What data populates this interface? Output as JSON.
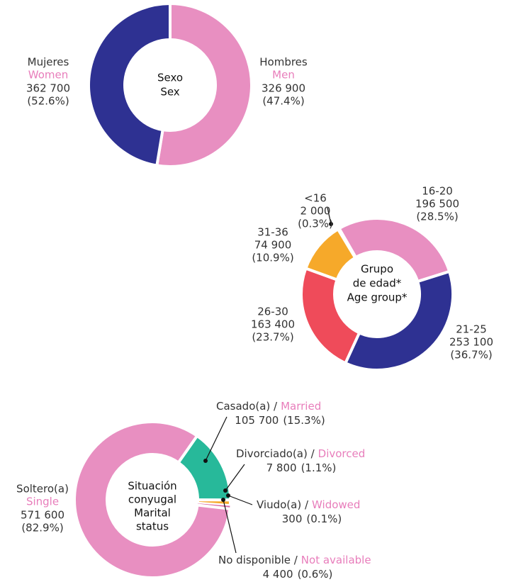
{
  "chart_data": [
    {
      "type": "pie",
      "center_es": [
        "Sexo"
      ],
      "center_en": [
        "Sex"
      ],
      "categories": [
        "Mujeres",
        "Hombres"
      ],
      "names_en": [
        "Women",
        "Men"
      ],
      "values": [
        362700,
        326900
      ],
      "value_labels": [
        "362 700",
        "326 900"
      ],
      "percent_labels": [
        "(52.6%)",
        "(47.4%)"
      ],
      "colors": [
        "#e88fc1",
        "#2e3192"
      ]
    },
    {
      "type": "pie",
      "center_es": [
        "Grupo",
        "de edad*"
      ],
      "center_en": [
        "Age group*"
      ],
      "categories": [
        "<16",
        "16-20",
        "21-25",
        "26-30",
        "31-36"
      ],
      "values": [
        2000,
        196500,
        253100,
        163400,
        74900
      ],
      "value_labels": [
        "2 000",
        "196 500",
        "253 100",
        "163 400",
        "74 900"
      ],
      "percent_labels": [
        "(0.3%)",
        "(28.5%)",
        "(36.7%)",
        "(23.7%)",
        "(10.9%)"
      ],
      "colors": [
        "#e88fc1",
        "#e88fc1",
        "#2e3192",
        "#ef4b5a",
        "#f6a92a"
      ]
    },
    {
      "type": "pie",
      "center_es": [
        "Situación",
        "conyugal"
      ],
      "center_en": [
        "Marital",
        "status"
      ],
      "categories": [
        "Casado(a) /",
        "Divorciado(a) /",
        "Viudo(a) /",
        "No disponible /",
        "Soltero(a)"
      ],
      "names_en": [
        "Married",
        "Divorced",
        "Widowed",
        "Not available",
        "Single"
      ],
      "values": [
        105700,
        7800,
        300,
        4400,
        571600
      ],
      "value_labels": [
        "105 700",
        "7 800",
        "300",
        "4 400",
        "571 600"
      ],
      "percent_labels": [
        "(15.3%)",
        "(1.1%)",
        "(0.1%)",
        "(0.6%)",
        "(82.9%)"
      ],
      "colors": [
        "#27b99a",
        "#f6a92a",
        "#f7c58f",
        "#d96aa6",
        "#e88fc1"
      ]
    }
  ]
}
